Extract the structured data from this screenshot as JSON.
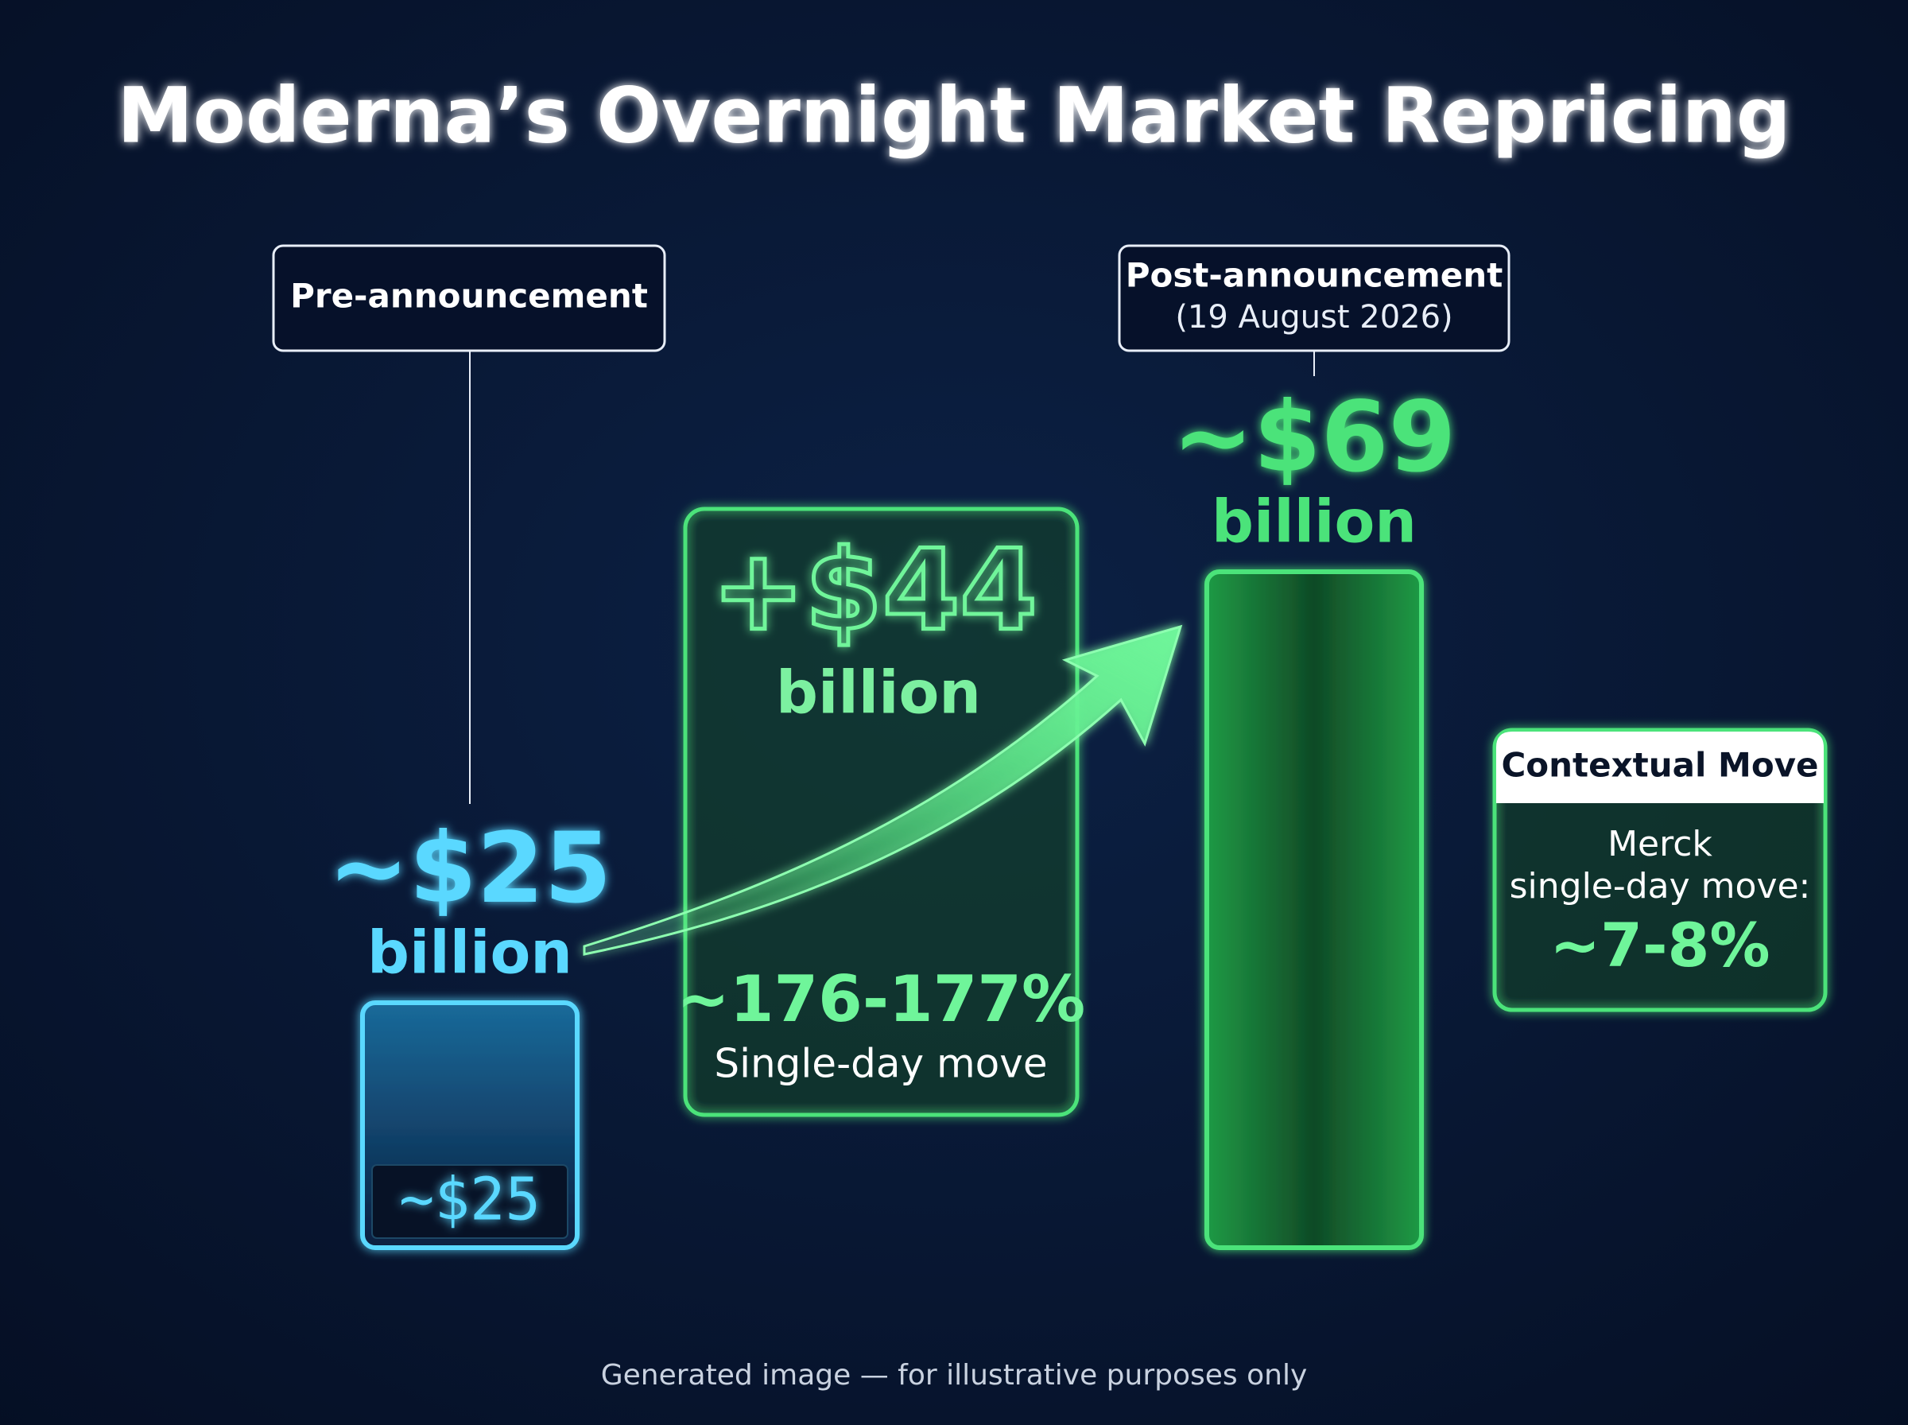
{
  "chart_data": {
    "type": "bar",
    "title": "Moderna’s Overnight Market Repricing",
    "categories": [
      "Pre-announcement",
      "Post-announcement"
    ],
    "category_notes": [
      null,
      "(19 August 2026)"
    ],
    "values": [
      25,
      69
    ],
    "value_labels": [
      "~$25",
      "~$69"
    ],
    "value_unit": "billion",
    "colors": [
      "#5ad8ff",
      "#4be37a"
    ],
    "change": {
      "label": "+$44",
      "unit": "billion",
      "percent_label": "~176-177%",
      "caption": "Single-day move"
    },
    "context": {
      "title": "Contextual Move",
      "lines": [
        "Merck",
        "single-day move:"
      ],
      "value_label": "~7-8%"
    },
    "footer": "Generated image — for illustrative purposes only"
  }
}
